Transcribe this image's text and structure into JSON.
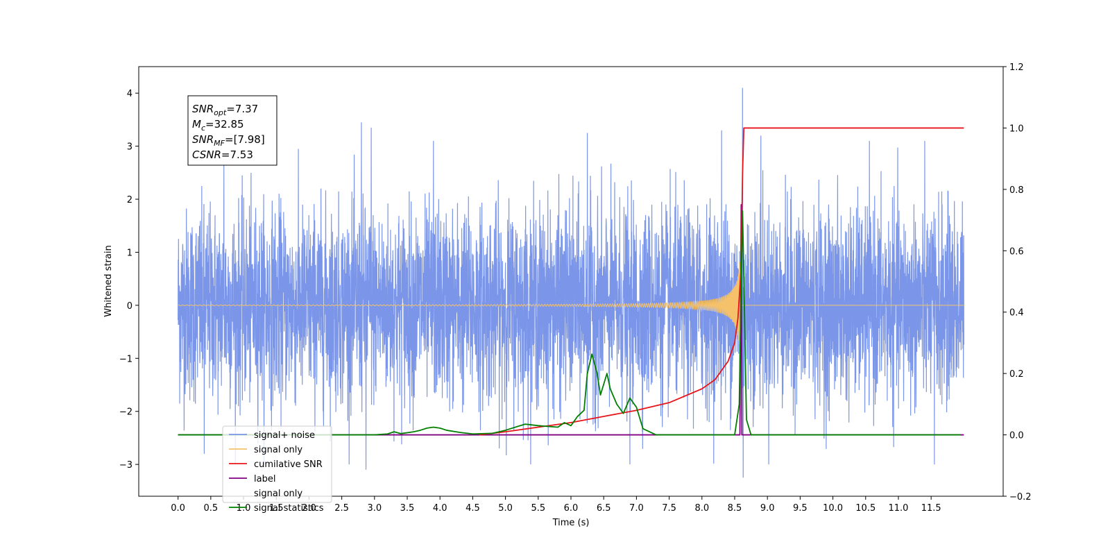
{
  "chart_data": {
    "type": "line",
    "xlabel": "Time (s)",
    "ylabel": "Whitened strain",
    "xlim": [
      -0.6,
      12.6
    ],
    "ylim_left": [
      -3.6,
      4.5
    ],
    "ylim_right": [
      -0.2,
      1.2
    ],
    "xticks": [
      "0.0",
      "0.5",
      "1.0",
      "1.5",
      "2.0",
      "2.5",
      "3.0",
      "3.5",
      "4.0",
      "4.5",
      "5.0",
      "5.5",
      "6.0",
      "6.5",
      "7.0",
      "7.5",
      "8.0",
      "8.5",
      "9.0",
      "9.5",
      "10.0",
      "10.5",
      "11.0",
      "11.5"
    ],
    "yticks_left": [
      "−3",
      "−2",
      "−1",
      "0",
      "1",
      "2",
      "3",
      "4"
    ],
    "yticks_right": [
      "−0.2",
      "0.0",
      "0.2",
      "0.4",
      "0.6",
      "0.8",
      "1.0",
      "1.2"
    ],
    "legend_position": "lower-left",
    "annotation": {
      "lines": [
        {
          "main": "SNR",
          "sub": "opt",
          "rest": "=7.37"
        },
        {
          "main": "M",
          "sub": "c",
          "rest": "=32.85"
        },
        {
          "main": "SNR",
          "sub": "MF",
          "rest": "=[7.98]"
        },
        {
          "main": "CSNR",
          "sub": "",
          "rest": "=7.53"
        }
      ]
    },
    "series": [
      {
        "name": "signal+ noise",
        "axis": "left",
        "color": "#7b96e8",
        "x_range": [
          0.0,
          12.0
        ],
        "noise_std": 0.9,
        "spikes": [
          {
            "x": 0.7,
            "y": 2.65
          },
          {
            "x": 2.8,
            "y": 3.45
          },
          {
            "x": 2.87,
            "y": -3.1
          },
          {
            "x": 2.95,
            "y": 3.35
          },
          {
            "x": 3.9,
            "y": 3.1
          },
          {
            "x": 6.25,
            "y": 3.25
          },
          {
            "x": 8.3,
            "y": 3.3
          },
          {
            "x": 8.62,
            "y": 4.1
          },
          {
            "x": 8.63,
            "y": -3.25
          },
          {
            "x": 8.9,
            "y": 3.2
          },
          {
            "x": 11.55,
            "y": -3.0
          },
          {
            "x": 0.4,
            "y": -2.8
          },
          {
            "x": 6.9,
            "y": -3.0
          }
        ]
      },
      {
        "name": "signal only",
        "axis": "left",
        "color": "#f5c26b",
        "x_range": [
          0.0,
          12.0
        ],
        "chirp_end": 8.6,
        "chirp_max_amp": 0.9
      },
      {
        "name": "cumilative SNR",
        "axis": "right",
        "color": "#e8141a",
        "points": [
          [
            4.6,
            0.0
          ],
          [
            5.0,
            0.01
          ],
          [
            5.5,
            0.025
          ],
          [
            6.0,
            0.04
          ],
          [
            6.5,
            0.06
          ],
          [
            7.0,
            0.08
          ],
          [
            7.5,
            0.105
          ],
          [
            8.0,
            0.15
          ],
          [
            8.2,
            0.18
          ],
          [
            8.4,
            0.24
          ],
          [
            8.5,
            0.3
          ],
          [
            8.55,
            0.38
          ],
          [
            8.6,
            0.55
          ],
          [
            8.62,
            0.85
          ],
          [
            8.64,
            1.0
          ],
          [
            12.0,
            1.0
          ]
        ]
      },
      {
        "name": "label",
        "axis": "right",
        "color": "#800080",
        "points": [
          [
            0.0,
            0.0
          ],
          [
            8.58,
            0.0
          ],
          [
            8.6,
            0.75
          ],
          [
            8.61,
            0.0
          ],
          [
            12.0,
            0.0
          ]
        ]
      },
      {
        "name": "signal only",
        "axis": "right",
        "color": "#ffffff",
        "hidden": true,
        "points": []
      },
      {
        "name": "signal statistics",
        "axis": "right",
        "color": "#007f00",
        "points": [
          [
            0.0,
            0.0
          ],
          [
            3.0,
            0.0
          ],
          [
            3.2,
            0.003
          ],
          [
            3.3,
            0.01
          ],
          [
            3.4,
            0.004
          ],
          [
            3.6,
            0.01
          ],
          [
            3.7,
            0.015
          ],
          [
            3.8,
            0.022
          ],
          [
            3.9,
            0.025
          ],
          [
            4.0,
            0.022
          ],
          [
            4.1,
            0.015
          ],
          [
            4.3,
            0.008
          ],
          [
            4.5,
            0.003
          ],
          [
            4.8,
            0.005
          ],
          [
            5.0,
            0.015
          ],
          [
            5.3,
            0.035
          ],
          [
            5.5,
            0.03
          ],
          [
            5.8,
            0.025
          ],
          [
            5.9,
            0.04
          ],
          [
            6.0,
            0.03
          ],
          [
            6.1,
            0.06
          ],
          [
            6.2,
            0.08
          ],
          [
            6.25,
            0.2
          ],
          [
            6.32,
            0.263
          ],
          [
            6.4,
            0.2
          ],
          [
            6.45,
            0.13
          ],
          [
            6.55,
            0.2
          ],
          [
            6.6,
            0.15
          ],
          [
            6.7,
            0.1
          ],
          [
            6.8,
            0.07
          ],
          [
            6.9,
            0.12
          ],
          [
            7.0,
            0.09
          ],
          [
            7.1,
            0.02
          ],
          [
            7.3,
            0.0
          ],
          [
            8.5,
            0.0
          ],
          [
            8.57,
            0.1
          ],
          [
            8.6,
            0.5
          ],
          [
            8.62,
            0.73
          ],
          [
            8.65,
            0.4
          ],
          [
            8.68,
            0.05
          ],
          [
            8.75,
            0.0
          ],
          [
            11.95,
            0.0
          ]
        ]
      }
    ],
    "legend": [
      {
        "label": "signal+ noise",
        "color": "#7b96e8"
      },
      {
        "label": "signal only",
        "color": "#f5c26b"
      },
      {
        "label": "cumilative SNR",
        "color": "#e8141a"
      },
      {
        "label": "label",
        "color": "#800080"
      },
      {
        "label": "signal only",
        "color": "#ffffff"
      },
      {
        "label": "signal statistics",
        "color": "#007f00"
      }
    ]
  }
}
